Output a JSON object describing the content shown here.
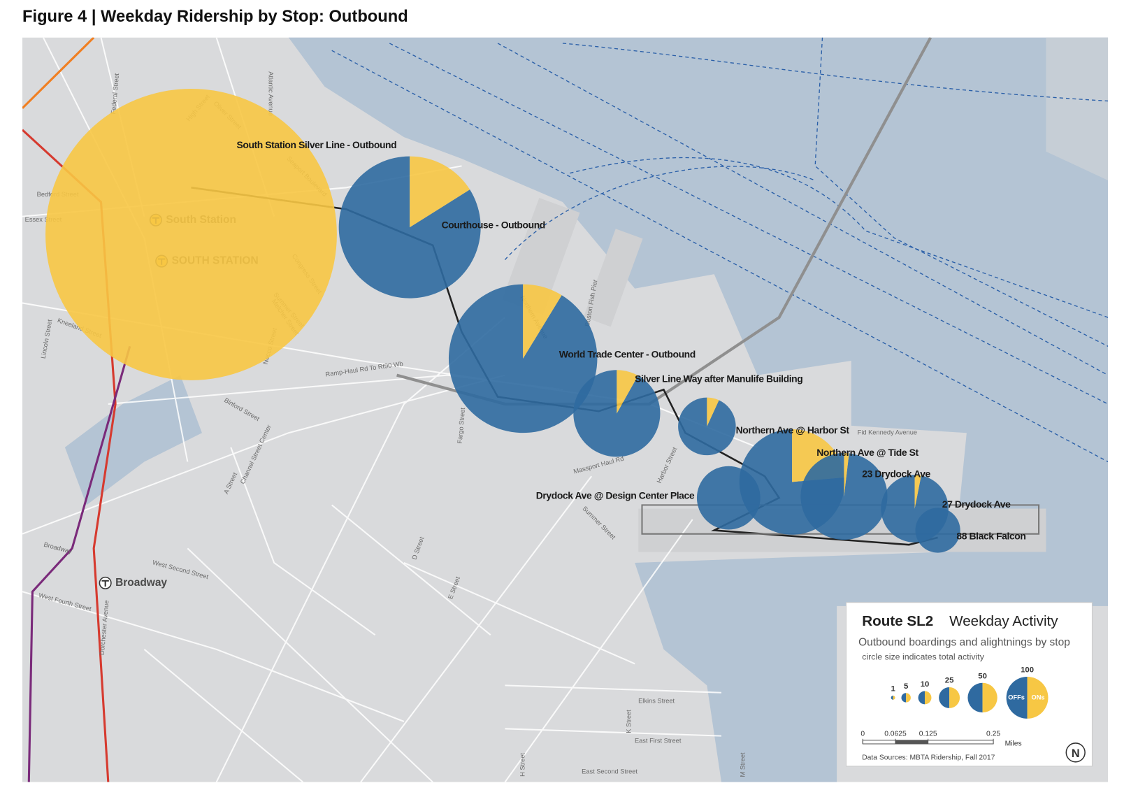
{
  "figure_title": "Figure 4 | Weekday Ridership by Stop: Outbound",
  "map": {
    "stops": [
      {
        "name": "South Station Silver Line - Outbound",
        "ons": 4850,
        "offs": 0
      },
      {
        "name": "Courthouse - Outbound",
        "ons": 185,
        "offs": 965
      },
      {
        "name": "World Trade Center - Outbound",
        "ons": 110,
        "offs": 1150
      },
      {
        "name": "Silver Line Way after Manulife Building",
        "ons": 35,
        "offs": 395
      },
      {
        "name": "Northern Ave @ Harbor St",
        "ons": 13,
        "offs": 177
      },
      {
        "name": "Northern Ave @ Tide St",
        "ons": 150,
        "offs": 485
      },
      {
        "name": "Drydock Ave @ Design Center Place",
        "ons": 0,
        "offs": 230
      },
      {
        "name": "23 Drydock Ave",
        "ons": 8,
        "offs": 422
      },
      {
        "name": "27 Drydock Ave",
        "ons": 8,
        "offs": 252
      },
      {
        "name": "88 Black Falcon",
        "ons": 0,
        "offs": 115
      }
    ],
    "places": [
      "South Station",
      "SOUTH STATION",
      "Broadway"
    ],
    "streets": [
      "Summer Street",
      "Congress Street",
      "Seaport Boulevard",
      "Atlantic Avenue",
      "Kneeland Street",
      "Lincoln Street",
      "Bedford Street",
      "Essex Street",
      "Ramp-Haul Rd To Rt90 Wb",
      "Binford Street",
      "Channel Street Center",
      "A Street",
      "Fargo Street",
      "Massport Haul Rd",
      "Harbor Street",
      "Fid Kennedy Avenue",
      "Summer Street",
      "D Street",
      "E Street",
      "West Second Street",
      "Broadway",
      "Dorchester Avenue",
      "West Fourth Street",
      "Elkins Street",
      "East First Street",
      "East Second Street",
      "K Street",
      "M Street",
      "H Street",
      "Boston Fish Pier",
      "Northern Avenue",
      "Melcher Street",
      "Necco Street",
      "Oliver Street",
      "High Street",
      "Federal Street"
    ]
  },
  "legend": {
    "title": "Route SL2",
    "title2": "Weekday Activity",
    "subtitle": "Outbound boardings and alightnings by stop",
    "note": "circle size indicates total activity",
    "sizes": [
      1,
      5,
      10,
      25,
      50,
      100
    ],
    "offs_label": "OFFs",
    "ons_label": "ONs",
    "scale_ticks": [
      0,
      0.0625,
      0.125,
      0.25
    ],
    "scale_unit": "Miles",
    "source": "Data Sources: MBTA Ridership, Fall 2017",
    "north": "N"
  }
}
